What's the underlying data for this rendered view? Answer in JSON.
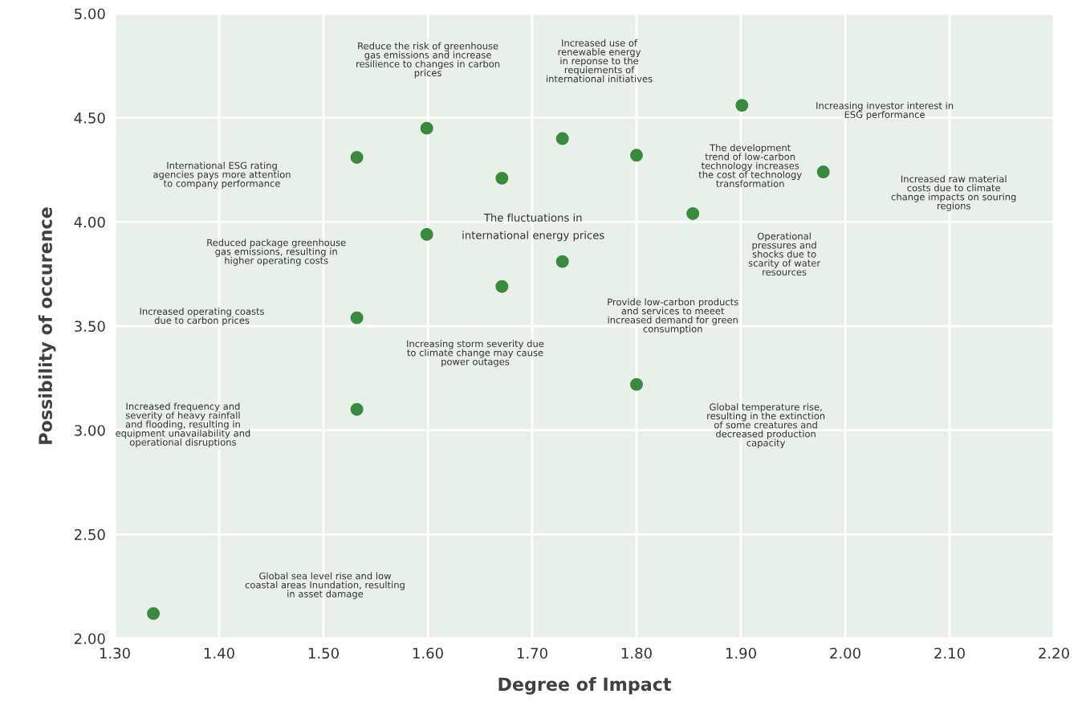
{
  "chart_data": {
    "type": "scatter",
    "xlabel": "Degree of Impact",
    "ylabel": "Possibility of occurence",
    "x": [
      1.337,
      1.532,
      1.532,
      1.599,
      1.532,
      1.599,
      1.671,
      1.671,
      1.729,
      1.729,
      1.8,
      1.8,
      1.854,
      1.901,
      1.979
    ],
    "series": [
      {
        "color": "#3a8a3e",
        "values": [
          2.12,
          3.1,
          3.54,
          3.94,
          4.31,
          4.45,
          4.21,
          3.69,
          3.81,
          4.4,
          4.32,
          3.22,
          4.04,
          4.56,
          4.24
        ]
      }
    ],
    "marker": "circle",
    "grid": true,
    "xlim": [
      1.3,
      2.2
    ],
    "ylim": [
      2.0,
      5.0
    ],
    "xticks": [
      {
        "value": 1.3,
        "label": "1.30"
      },
      {
        "value": 1.4,
        "label": "1.40"
      },
      {
        "value": 1.5,
        "label": "1.50"
      },
      {
        "value": 1.6,
        "label": "1.60"
      },
      {
        "value": 1.7,
        "label": "1.70"
      },
      {
        "value": 1.8,
        "label": "1.80"
      },
      {
        "value": 1.9,
        "label": "1.90"
      },
      {
        "value": 2.0,
        "label": "2.00"
      },
      {
        "value": 2.1,
        "label": "2.10"
      },
      {
        "value": 2.2,
        "label": "2.20"
      }
    ],
    "yticks": [
      {
        "value": 2.0,
        "label": "2.00"
      },
      {
        "value": 2.5,
        "label": "2.50"
      },
      {
        "value": 3.0,
        "label": "3.00"
      },
      {
        "value": 3.5,
        "label": "3.50"
      },
      {
        "value": 4.0,
        "label": "4.00"
      },
      {
        "value": 4.5,
        "label": "4.50"
      },
      {
        "value": 5.0,
        "label": "5.00"
      }
    ],
    "annotations": [
      "Global sea level rise and low\ncoastal areas Inundation, resulting\nin asset damage",
      "Increased frequency and\nseverity of heavy rainfall\nand flooding, resulting in\nequipment unavailability and\noperational disruptions",
      "Increased operating coasts\ndue to carbon prices",
      "Reduced package greenhouse\ngas emissions, resulting in\nhigher operating costs",
      "International ESG rating\nagencies pays more attention\nto company performance",
      "Reduce the risk of greenhouse\ngas emissions and increase\nresilience to changes in carbon\nprices",
      "The fluctuations in\ninternational energy prices",
      "Increasing storm severity due\nto climate change may cause\npower outages",
      "Provide low-carbon products\nand services to meeet\nincreased demand for green\nconsumption",
      "Increased use of\nrenewable energy\nin reponse to the\nrequiements of\ninternational initiatives",
      "The development\ntrend of low-carbon\ntechnology increases\nthe cost of technology\ntransformation",
      "Global temperature rise,\nresulting in the extinction\nof some creatures and\ndecreased production\ncapacity",
      "Operational\npressures and\nshocks due to\nscarity of water\nresources",
      "Increasing investor interest in\nESG performance",
      "Increased raw material\ncosts due to climate\nchange impacts on souring\nregions"
    ]
  }
}
